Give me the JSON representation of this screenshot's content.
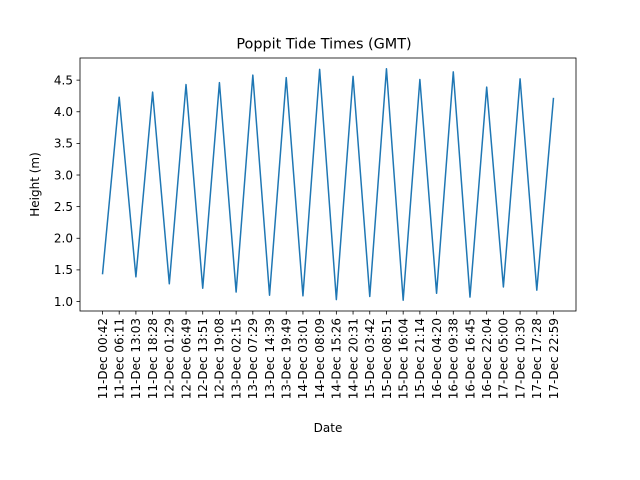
{
  "chart_data": {
    "type": "line",
    "title": "Poppit Tide Times (GMT)",
    "xlabel": "Date",
    "ylabel": "Height (m)",
    "ylim": [
      0.85,
      4.85
    ],
    "yticks": [
      1.0,
      1.5,
      2.0,
      2.5,
      3.0,
      3.5,
      4.0,
      4.5
    ],
    "ytick_labels": [
      "1.0",
      "1.5",
      "2.0",
      "2.5",
      "3.0",
      "3.5",
      "4.0",
      "4.5"
    ],
    "grid": false,
    "legend": "none",
    "line_color": "#1f77b4",
    "categories": [
      "11-Dec 00:42",
      "11-Dec 06:11",
      "11-Dec 13:03",
      "11-Dec 18:28",
      "12-Dec 01:29",
      "12-Dec 06:49",
      "12-Dec 13:51",
      "12-Dec 19:08",
      "13-Dec 02:15",
      "13-Dec 07:29",
      "13-Dec 14:39",
      "13-Dec 19:49",
      "14-Dec 03:01",
      "14-Dec 08:09",
      "14-Dec 15:26",
      "14-Dec 20:31",
      "15-Dec 03:42",
      "15-Dec 08:51",
      "15-Dec 16:04",
      "15-Dec 21:14",
      "16-Dec 04:20",
      "16-Dec 09:38",
      "16-Dec 16:45",
      "16-Dec 22:04",
      "17-Dec 05:00",
      "17-Dec 10:30",
      "17-Dec 17:28",
      "17-Dec 22:59"
    ],
    "values": [
      1.43,
      4.23,
      1.39,
      4.31,
      1.28,
      4.43,
      1.21,
      4.46,
      1.15,
      4.58,
      1.1,
      4.54,
      1.09,
      4.67,
      1.03,
      4.56,
      1.08,
      4.68,
      1.02,
      4.51,
      1.13,
      4.63,
      1.07,
      4.39,
      1.23,
      4.52,
      1.18,
      4.22
    ]
  }
}
